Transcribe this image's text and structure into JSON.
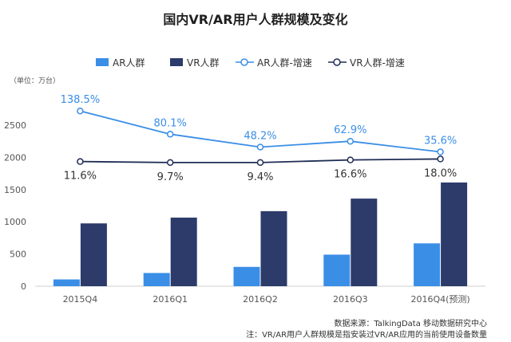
{
  "colors": {
    "ar_bar": "#3a8ee6",
    "vr_bar": "#2c3b6a",
    "ar_line": "#3a8ee6",
    "vr_line": "#1f2d55",
    "axis": "#cfcfcf"
  },
  "chart_data": {
    "type": "bar",
    "title": "国内VR/AR用户人群规模及变化",
    "unit_label": "（单位：万台）",
    "categories": [
      "2015Q4",
      "2016Q1",
      "2016Q2",
      "2016Q3",
      "2016Q4(预测)"
    ],
    "ylim": [
      0,
      2750
    ],
    "yticks": [
      0,
      500,
      1000,
      1500,
      2000,
      2500
    ],
    "series": [
      {
        "name": "AR人群",
        "kind": "bar",
        "values": [
          105,
          205,
          300,
          490,
          665
        ]
      },
      {
        "name": "VR人群",
        "kind": "bar",
        "values": [
          975,
          1065,
          1165,
          1360,
          1610
        ]
      },
      {
        "name": "AR人群-增速",
        "kind": "line",
        "labels": [
          "138.5%",
          "80.1%",
          "48.2%",
          "62.9%",
          "35.6%"
        ],
        "positions": [
          2720,
          2360,
          2160,
          2250,
          2085
        ]
      },
      {
        "name": "VR人群-增速",
        "kind": "line",
        "labels": [
          "11.6%",
          "9.7%",
          "9.4%",
          "16.6%",
          "18.0%"
        ],
        "positions": [
          1935,
          1920,
          1920,
          1960,
          1975
        ]
      }
    ],
    "legend": "top",
    "grid": false
  },
  "source": {
    "line1": "数据来源：TalkingData 移动数据研究中心",
    "line2": "注：VR/AR用户人群规模是指安装过VR/AR应用的当前使用设备数量"
  }
}
